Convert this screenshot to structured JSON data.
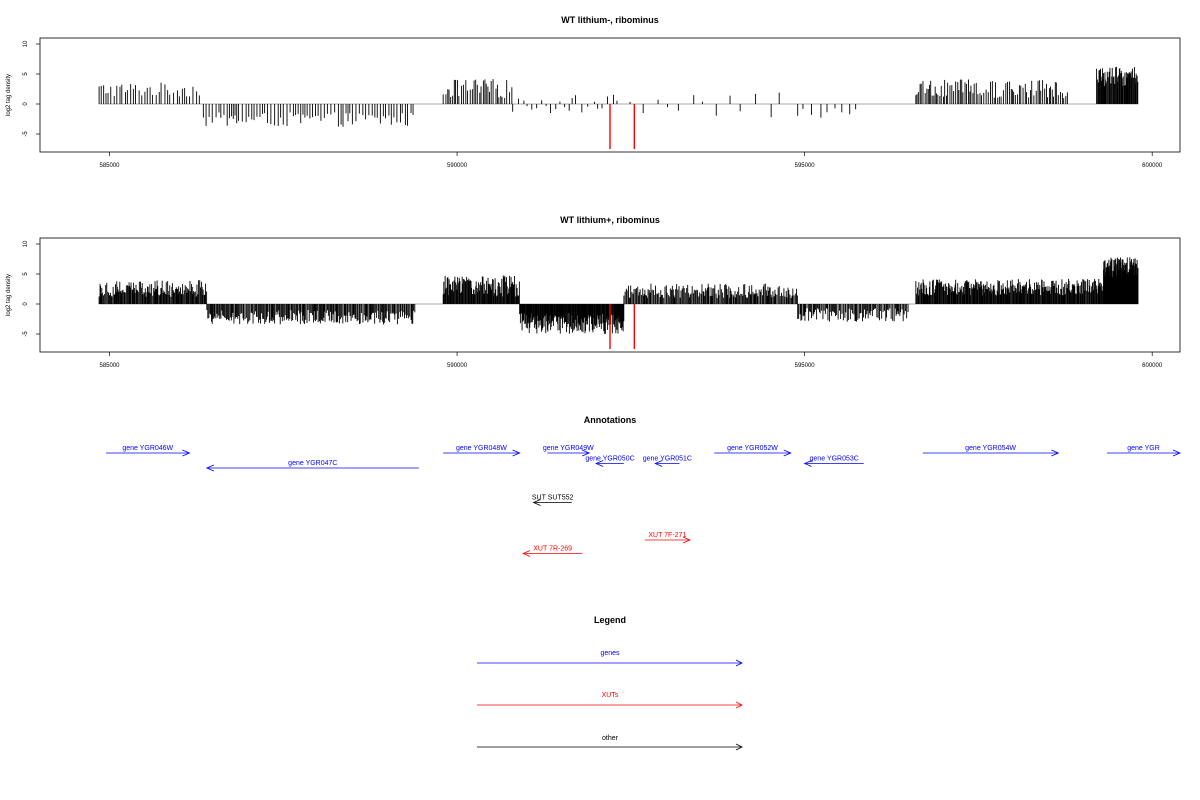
{
  "chart_data": [
    {
      "type": "bar",
      "title": "WT lithium-, ribominus",
      "xlabel": "",
      "ylabel": "log2 tag density",
      "xlim": [
        584000,
        600400
      ],
      "ylim": [
        -8,
        11
      ],
      "x_ticks": [
        "585000",
        "590000",
        "595000",
        "600000"
      ],
      "y_ticks": [
        "-5",
        "0",
        "5",
        "10"
      ],
      "colors": {
        "bars": "#000000",
        "highlight": "#ff0000"
      },
      "highlights": [
        {
          "x": 592200,
          "value": -7.5
        },
        {
          "x": 592550,
          "value": -7.5
        }
      ],
      "regions": [
        {
          "start": 584850,
          "end": 586300,
          "mean": 2.4,
          "var": 1.2,
          "step": 40
        },
        {
          "start": 586350,
          "end": 589400,
          "mean": -2.6,
          "var": 1.2,
          "step": 40
        },
        {
          "start": 589800,
          "end": 590800,
          "mean": 2.6,
          "var": 1.6,
          "step": 30
        },
        {
          "start": 590800,
          "end": 592300,
          "mean": 0.3,
          "var": 1.4,
          "step": 70
        },
        {
          "start": 592300,
          "end": 594800,
          "mean": 1.0,
          "var": 1.2,
          "step": 160
        },
        {
          "start": 594900,
          "end": 595800,
          "mean": -1.6,
          "var": 1.2,
          "step": 110
        },
        {
          "start": 596600,
          "end": 598800,
          "mean": 2.5,
          "var": 1.6,
          "step": 25
        },
        {
          "start": 599200,
          "end": 599800,
          "mean": 4.6,
          "var": 1.6,
          "step": 10
        }
      ]
    },
    {
      "type": "bar",
      "title": "WT lithium+, ribominus",
      "xlabel": "",
      "ylabel": "log2 tag density",
      "xlim": [
        584000,
        600400
      ],
      "ylim": [
        -8,
        11
      ],
      "x_ticks": [
        "585000",
        "590000",
        "595000",
        "600000"
      ],
      "y_ticks": [
        "-5",
        "0",
        "5",
        "10"
      ],
      "colors": {
        "bars": "#000000",
        "highlight": "#ff0000"
      },
      "highlights": [
        {
          "x": 592200,
          "value": -7.5
        },
        {
          "x": 592550,
          "value": -7.5
        }
      ],
      "regions": [
        {
          "start": 584850,
          "end": 586400,
          "mean": 2.6,
          "var": 1.4,
          "step": 12
        },
        {
          "start": 586400,
          "end": 589400,
          "mean": -2.2,
          "var": 1.2,
          "step": 14
        },
        {
          "start": 589800,
          "end": 590900,
          "mean": 3.0,
          "var": 1.8,
          "step": 10
        },
        {
          "start": 590900,
          "end": 592400,
          "mean": -3.2,
          "var": 1.8,
          "step": 8
        },
        {
          "start": 592400,
          "end": 594900,
          "mean": 2.2,
          "var": 1.2,
          "step": 14
        },
        {
          "start": 594900,
          "end": 596500,
          "mean": -1.8,
          "var": 1.2,
          "step": 16
        },
        {
          "start": 596600,
          "end": 599300,
          "mean": 2.8,
          "var": 1.4,
          "step": 10
        },
        {
          "start": 599300,
          "end": 599800,
          "mean": 6.0,
          "var": 1.8,
          "step": 5
        }
      ]
    }
  ],
  "annotations": {
    "title": "Annotations",
    "xlim": [
      584000,
      600400
    ],
    "features": [
      {
        "label": "gene YGR046W",
        "start": 584950,
        "end": 586150,
        "strand": "+",
        "row": 0,
        "color": "#0000ff"
      },
      {
        "label": "gene YGR047C",
        "start": 586400,
        "end": 589450,
        "strand": "-",
        "row": 1,
        "color": "#0000ff"
      },
      {
        "label": "gene YGR048W",
        "start": 589800,
        "end": 590900,
        "strand": "+",
        "row": 0,
        "color": "#0000ff"
      },
      {
        "label": "gene YGR049W",
        "start": 591300,
        "end": 591900,
        "strand": "+",
        "row": 0,
        "color": "#0000ff"
      },
      {
        "label": "gene YGR050C",
        "start": 592000,
        "end": 592400,
        "strand": "-",
        "row": 0.7,
        "color": "#0000ff"
      },
      {
        "label": "gene YGR051C",
        "start": 592850,
        "end": 593200,
        "strand": "-",
        "row": 0.7,
        "color": "#0000ff"
      },
      {
        "label": "gene YGR052W",
        "start": 593700,
        "end": 594800,
        "strand": "+",
        "row": 0,
        "color": "#0000ff"
      },
      {
        "label": "gene YGR053C",
        "start": 595000,
        "end": 595850,
        "strand": "-",
        "row": 0.7,
        "color": "#0000ff"
      },
      {
        "label": "gene YGR054W",
        "start": 596700,
        "end": 598650,
        "strand": "+",
        "row": 0,
        "color": "#0000ff"
      },
      {
        "label": "gene YGR",
        "start": 599350,
        "end": 600400,
        "strand": "+",
        "row": 0,
        "color": "#0000ff"
      },
      {
        "label": "SUT SUT552",
        "start": 591100,
        "end": 591650,
        "strand": "-",
        "row": 3.3,
        "color": "#000000"
      },
      {
        "label": "XUT 7F-271",
        "start": 592700,
        "end": 593350,
        "strand": "+",
        "row": 5.8,
        "color": "#ff0000"
      },
      {
        "label": "XUT 7R-269",
        "start": 590950,
        "end": 591800,
        "strand": "-",
        "row": 6.7,
        "color": "#ff0000"
      }
    ]
  },
  "legend": {
    "title": "Legend",
    "items": [
      {
        "label": "genes",
        "color": "#0000ff"
      },
      {
        "label": "XUTs",
        "color": "#ff0000"
      },
      {
        "label": "other",
        "color": "#000000"
      }
    ]
  }
}
